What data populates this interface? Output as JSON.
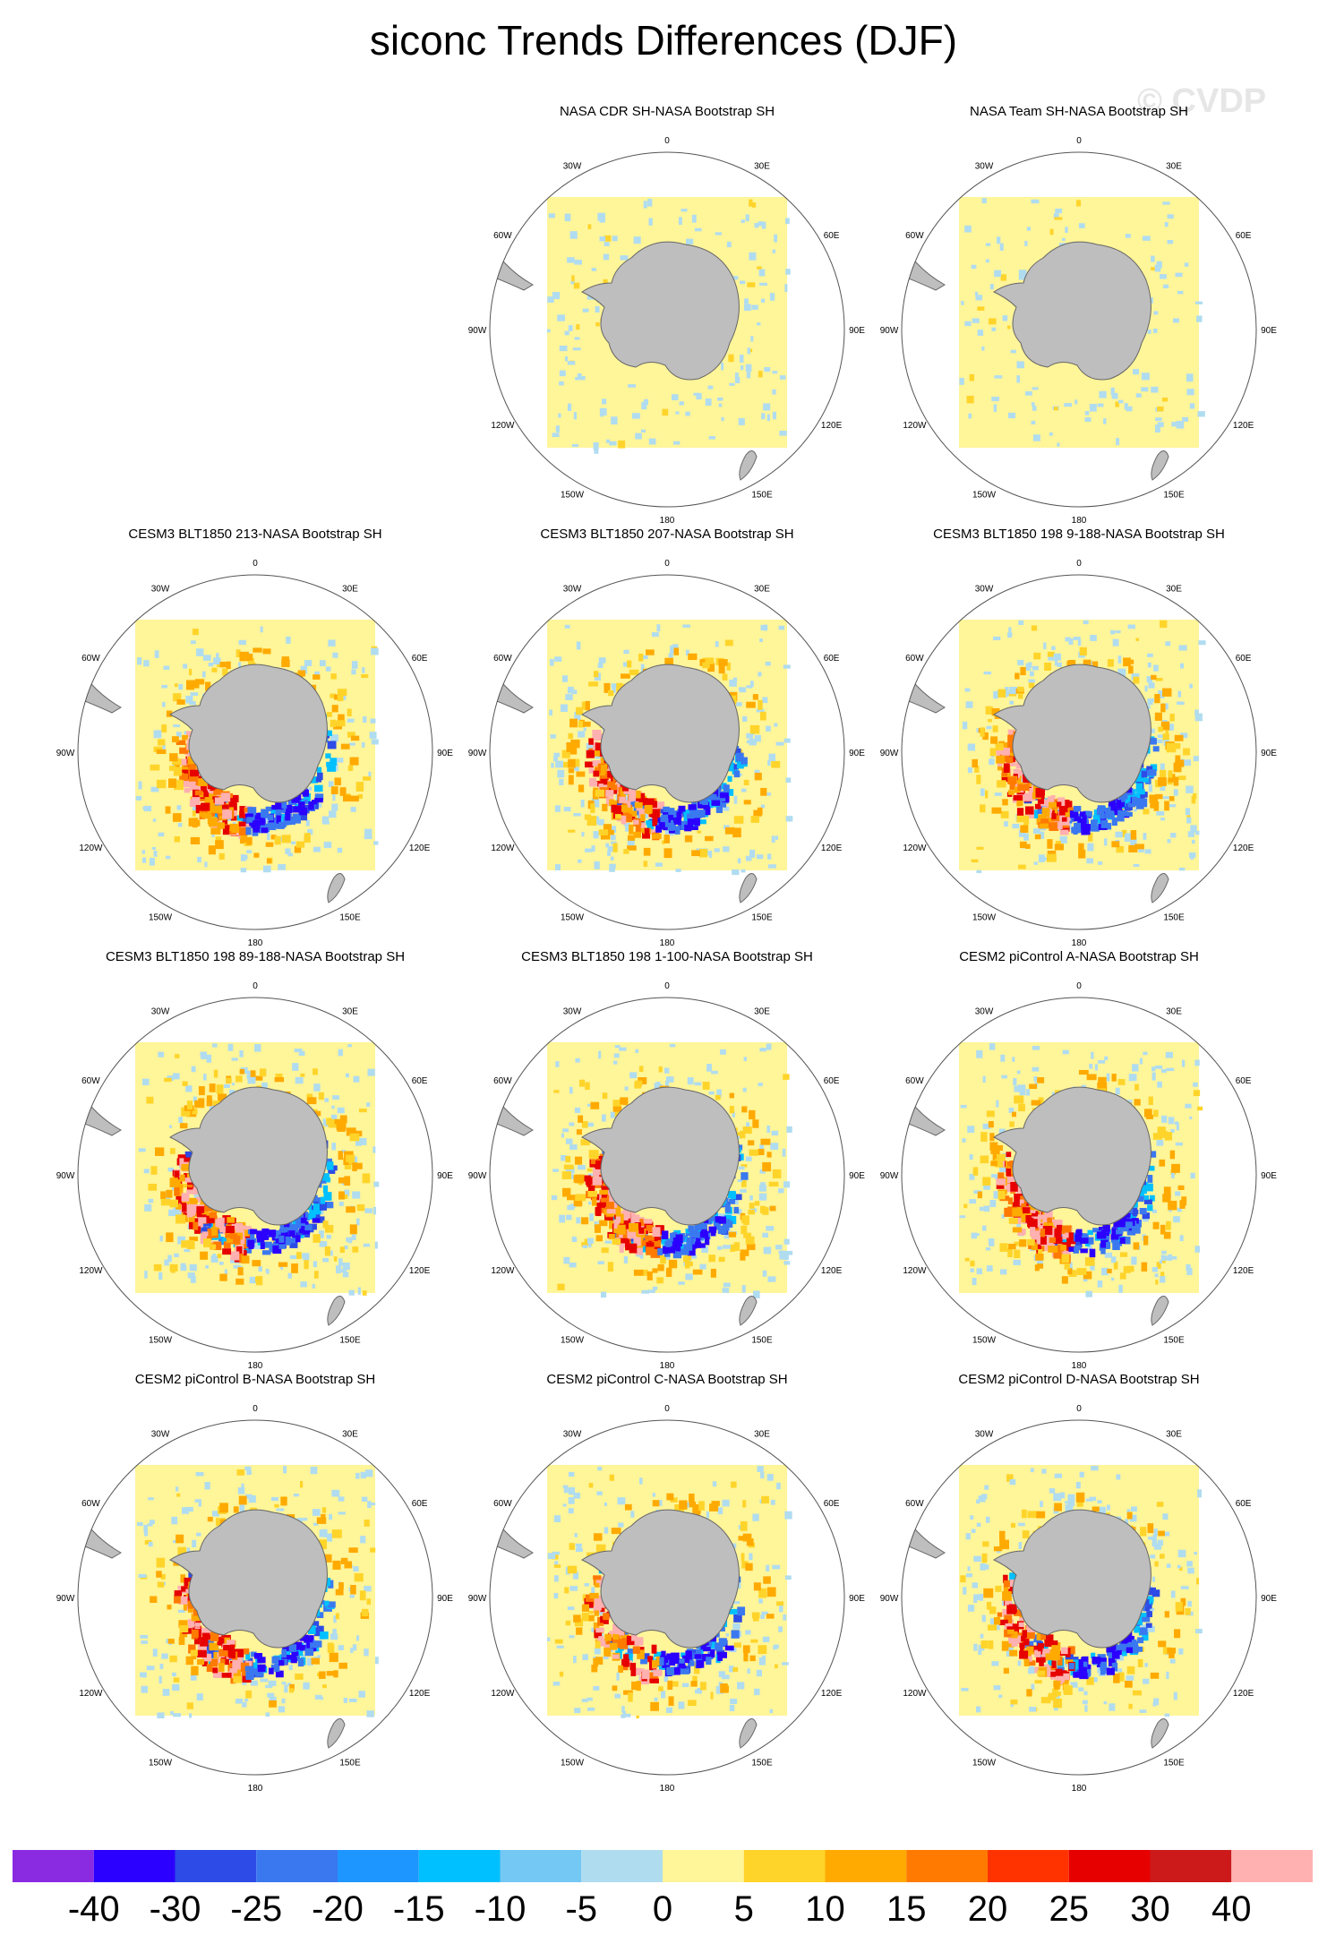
{
  "title": "siconc Trends Differences (DJF)",
  "watermark": "© CVDP",
  "longitude_labels": [
    "0",
    "30E",
    "60E",
    "90E",
    "120E",
    "150E",
    "180",
    "150W",
    "120W",
    "90W",
    "60W",
    "30W"
  ],
  "panels": [
    {
      "title": "NASA CDR SH-NASA Bootstrap SH",
      "row": 0,
      "col": 1,
      "pattern": "weak"
    },
    {
      "title": "NASA Team SH-NASA Bootstrap SH",
      "row": 0,
      "col": 2,
      "pattern": "weak"
    },
    {
      "title": "CESM3 BLT1850 213-NASA Bootstrap SH",
      "row": 1,
      "col": 0,
      "pattern": "strong"
    },
    {
      "title": "CESM3 BLT1850 207-NASA Bootstrap SH",
      "row": 1,
      "col": 1,
      "pattern": "strong"
    },
    {
      "title": "CESM3 BLT1850 198 9-188-NASA Bootstrap SH",
      "row": 1,
      "col": 2,
      "pattern": "strong"
    },
    {
      "title": "CESM3 BLT1850 198 89-188-NASA Bootstrap SH",
      "row": 2,
      "col": 0,
      "pattern": "strong"
    },
    {
      "title": "CESM3 BLT1850 198 1-100-NASA Bootstrap SH",
      "row": 2,
      "col": 1,
      "pattern": "strong"
    },
    {
      "title": "CESM2 piControl A-NASA Bootstrap SH",
      "row": 2,
      "col": 2,
      "pattern": "strong"
    },
    {
      "title": "CESM2 piControl B-NASA Bootstrap SH",
      "row": 3,
      "col": 0,
      "pattern": "moderate"
    },
    {
      "title": "CESM2 piControl C-NASA Bootstrap SH",
      "row": 3,
      "col": 1,
      "pattern": "moderate"
    },
    {
      "title": "CESM2 piControl D-NASA Bootstrap SH",
      "row": 3,
      "col": 2,
      "pattern": "moderate"
    }
  ],
  "colorbar": {
    "labels": [
      "-40",
      "-30",
      "-25",
      "-20",
      "-15",
      "-10",
      "-5",
      "0",
      "5",
      "10",
      "15",
      "20",
      "25",
      "30",
      "40"
    ],
    "colors": [
      "#8a2be2",
      "#2b00ff",
      "#2d4be6",
      "#3a78f0",
      "#1e96ff",
      "#00c0ff",
      "#74c8f4",
      "#b0dcf0",
      "#fff599",
      "#ffd42a",
      "#ffaa00",
      "#ff7a00",
      "#ff3300",
      "#e60000",
      "#cc1a1a",
      "#ffb0b0"
    ]
  },
  "colors": {
    "land": "#bebebe",
    "zero_band": "#fff599",
    "map_outline": "#555555"
  }
}
